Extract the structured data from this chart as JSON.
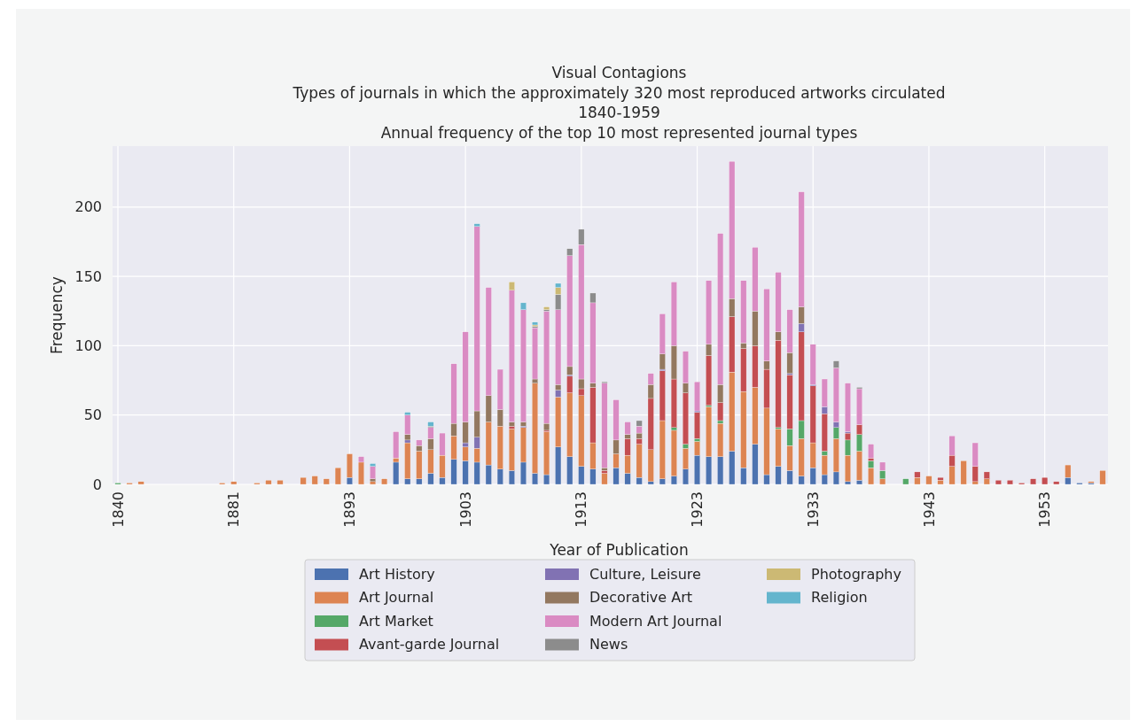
{
  "chart_data": {
    "type": "bar",
    "stacked": true,
    "title": "Visual Contagions",
    "subtitle": "Types of journals in which the approximately 320 most reproduced artworks circulated\n1840-1959\nAnnual frequency of the top 10 most represented journal types",
    "xlabel": "Year of Publication",
    "ylabel": "Frequency",
    "categories": [
      "1840",
      null,
      null,
      null,
      null,
      null,
      null,
      null,
      null,
      null,
      "1881",
      null,
      null,
      null,
      null,
      null,
      null,
      null,
      null,
      null,
      "1893",
      null,
      null,
      null,
      null,
      null,
      null,
      null,
      null,
      null,
      "1903",
      null,
      null,
      null,
      null,
      null,
      null,
      null,
      null,
      null,
      "1913",
      null,
      null,
      null,
      null,
      null,
      null,
      null,
      null,
      null,
      "1923",
      null,
      null,
      null,
      null,
      null,
      null,
      null,
      null,
      null,
      "1933",
      null,
      null,
      null,
      null,
      null,
      null,
      null,
      null,
      null,
      "1943",
      null,
      null,
      null,
      null,
      null,
      null,
      null,
      null,
      null,
      "1953",
      null,
      null,
      null,
      null,
      null
    ],
    "series": [
      {
        "name": "Art History",
        "color": "#4c72b0",
        "values": [
          0,
          0,
          0,
          0,
          0,
          0,
          0,
          0,
          0,
          0,
          0,
          0,
          0,
          0,
          0,
          0,
          0,
          0,
          0,
          0,
          5,
          0,
          0,
          0,
          16,
          4,
          4,
          8,
          5,
          18,
          17,
          16,
          14,
          11,
          10,
          16,
          8,
          7,
          27,
          20,
          13,
          11,
          0,
          12,
          8,
          5,
          2,
          4,
          6,
          11,
          21,
          20,
          20,
          24,
          12,
          29,
          7,
          13,
          10,
          6,
          12,
          7,
          9,
          2,
          3,
          0,
          0,
          0,
          0,
          0,
          0,
          0,
          0,
          0,
          0,
          0,
          0,
          0,
          0,
          0,
          0,
          0,
          5,
          1,
          1,
          0
        ]
      },
      {
        "name": "Art Journal",
        "color": "#dd8452",
        "values": [
          0,
          1,
          2,
          0,
          0,
          0,
          0,
          0,
          0,
          1,
          2,
          0,
          1,
          3,
          3,
          0,
          5,
          6,
          4,
          12,
          17,
          16,
          2,
          4,
          3,
          26,
          20,
          17,
          16,
          17,
          10,
          10,
          31,
          31,
          30,
          25,
          65,
          31,
          36,
          46,
          51,
          19,
          8,
          10,
          13,
          24,
          23,
          42,
          33,
          15,
          10,
          36,
          24,
          57,
          55,
          41,
          48,
          27,
          18,
          27,
          18,
          14,
          24,
          19,
          21,
          12,
          4,
          0,
          0,
          5,
          6,
          3,
          13,
          17,
          2,
          4,
          0,
          0,
          0,
          0,
          0,
          0,
          9,
          0,
          1,
          10
        ]
      },
      {
        "name": "Art Market",
        "color": "#55a868",
        "values": [
          1,
          0,
          0,
          0,
          0,
          0,
          0,
          0,
          0,
          0,
          0,
          0,
          0,
          0,
          0,
          0,
          0,
          0,
          0,
          0,
          0,
          0,
          0,
          0,
          0,
          0,
          0,
          0,
          0,
          0,
          0,
          0,
          0,
          0,
          0,
          0,
          0,
          0,
          0,
          0,
          0,
          0,
          0,
          0,
          0,
          0,
          0,
          0,
          2,
          3,
          2,
          1,
          2,
          0,
          0,
          0,
          0,
          1,
          12,
          13,
          0,
          3,
          8,
          11,
          12,
          5,
          6,
          0,
          4,
          0,
          0,
          0,
          0,
          0,
          0,
          0,
          0,
          0,
          0,
          0,
          0,
          0,
          0,
          0,
          0,
          0
        ]
      },
      {
        "name": "Avant-garde Journal",
        "color": "#c44e52",
        "values": [
          0,
          0,
          0,
          0,
          0,
          0,
          0,
          0,
          0,
          0,
          0,
          0,
          0,
          0,
          0,
          0,
          0,
          0,
          0,
          0,
          0,
          0,
          0,
          0,
          0,
          0,
          0,
          0,
          0,
          0,
          0,
          0,
          0,
          0,
          2,
          0,
          0,
          1,
          0,
          12,
          5,
          40,
          2,
          0,
          12,
          4,
          37,
          36,
          35,
          37,
          19,
          36,
          13,
          40,
          31,
          30,
          28,
          63,
          39,
          64,
          41,
          27,
          0,
          5,
          7,
          2,
          0,
          0,
          0,
          4,
          0,
          2,
          8,
          0,
          11,
          5,
          3,
          3,
          1,
          4,
          5,
          2,
          0,
          0,
          0,
          0
        ]
      },
      {
        "name": "Culture, Leisure",
        "color": "#8172b3",
        "values": [
          0,
          0,
          0,
          0,
          0,
          0,
          0,
          0,
          0,
          0,
          0,
          0,
          0,
          0,
          0,
          0,
          0,
          0,
          0,
          0,
          0,
          0,
          0,
          0,
          0,
          2,
          0,
          0,
          0,
          0,
          3,
          8,
          0,
          0,
          0,
          1,
          0,
          0,
          5,
          1,
          0,
          0,
          0,
          0,
          0,
          0,
          0,
          1,
          0,
          0,
          1,
          0,
          0,
          0,
          0,
          0,
          0,
          0,
          1,
          6,
          1,
          5,
          4,
          1,
          0,
          0,
          0,
          0,
          0,
          0,
          0,
          0,
          0,
          0,
          0,
          0,
          0,
          0,
          0,
          0,
          0,
          0,
          0,
          0,
          0,
          0
        ]
      },
      {
        "name": "Decorative Art",
        "color": "#937860",
        "values": [
          0,
          0,
          0,
          0,
          0,
          0,
          0,
          0,
          0,
          0,
          0,
          0,
          0,
          0,
          0,
          0,
          0,
          0,
          0,
          0,
          0,
          0,
          2,
          0,
          0,
          4,
          4,
          8,
          0,
          9,
          15,
          19,
          19,
          12,
          3,
          3,
          3,
          5,
          4,
          6,
          7,
          3,
          2,
          10,
          3,
          4,
          10,
          11,
          24,
          7,
          0,
          8,
          13,
          13,
          4,
          25,
          6,
          6,
          15,
          12,
          0,
          0,
          0,
          0,
          0,
          0,
          0,
          0,
          0,
          0,
          0,
          0,
          0,
          0,
          0,
          0,
          0,
          0,
          0,
          0,
          0,
          0,
          0,
          0,
          0,
          0
        ]
      },
      {
        "name": "Modern Art Journal",
        "color": "#da8bc3",
        "values": [
          0,
          0,
          0,
          0,
          0,
          0,
          0,
          0,
          0,
          0,
          0,
          0,
          0,
          0,
          0,
          0,
          0,
          0,
          0,
          0,
          0,
          4,
          9,
          0,
          19,
          14,
          4,
          8,
          16,
          43,
          65,
          133,
          78,
          29,
          95,
          81,
          37,
          81,
          54,
          80,
          97,
          58,
          61,
          29,
          9,
          5,
          8,
          29,
          46,
          23,
          21,
          46,
          109,
          99,
          45,
          46,
          52,
          43,
          31,
          83,
          29,
          20,
          39,
          35,
          26,
          10,
          6,
          0,
          0,
          0,
          0,
          0,
          14,
          0,
          17,
          0,
          0,
          0,
          0,
          0,
          0,
          0,
          0,
          0,
          0,
          0
        ]
      },
      {
        "name": "News",
        "color": "#8c8c8c",
        "values": [
          0,
          0,
          0,
          0,
          0,
          0,
          0,
          0,
          0,
          0,
          0,
          0,
          0,
          0,
          0,
          0,
          0,
          0,
          0,
          0,
          0,
          0,
          0,
          0,
          0,
          0,
          0,
          1,
          0,
          0,
          0,
          0,
          0,
          0,
          0,
          0,
          1,
          1,
          11,
          5,
          11,
          7,
          1,
          0,
          0,
          4,
          0,
          0,
          0,
          0,
          0,
          0,
          0,
          0,
          0,
          0,
          0,
          0,
          0,
          0,
          0,
          0,
          5,
          0,
          1,
          0,
          0,
          0,
          0,
          0,
          0,
          0,
          0,
          0,
          0,
          0,
          0,
          0,
          0,
          0,
          0,
          0,
          0,
          0,
          0,
          0
        ]
      },
      {
        "name": "Photography",
        "color": "#ccb974",
        "values": [
          0,
          0,
          0,
          0,
          0,
          0,
          0,
          0,
          0,
          0,
          0,
          0,
          0,
          0,
          0,
          0,
          0,
          0,
          0,
          0,
          0,
          0,
          0,
          0,
          0,
          0,
          0,
          0,
          0,
          0,
          0,
          0,
          0,
          0,
          6,
          0,
          1,
          2,
          5,
          0,
          0,
          0,
          0,
          0,
          0,
          0,
          0,
          0,
          0,
          0,
          0,
          0,
          0,
          0,
          0,
          0,
          0,
          0,
          0,
          0,
          0,
          0,
          0,
          0,
          0,
          0,
          0,
          0,
          0,
          0,
          0,
          0,
          0,
          0,
          0,
          0,
          0,
          0,
          0,
          0,
          0,
          0,
          0,
          0,
          0,
          0
        ]
      },
      {
        "name": "Religion",
        "color": "#64b5cd",
        "values": [
          0,
          0,
          0,
          0,
          0,
          0,
          0,
          0,
          0,
          0,
          0,
          0,
          0,
          0,
          0,
          0,
          0,
          0,
          0,
          0,
          0,
          0,
          2,
          0,
          0,
          2,
          0,
          3,
          0,
          0,
          0,
          2,
          0,
          0,
          0,
          5,
          2,
          0,
          3,
          0,
          0,
          0,
          0,
          0,
          0,
          0,
          0,
          0,
          0,
          0,
          0,
          0,
          0,
          0,
          0,
          0,
          0,
          0,
          0,
          0,
          0,
          0,
          0,
          0,
          0,
          0,
          0,
          0,
          0,
          0,
          0,
          0,
          0,
          0,
          0,
          0,
          0,
          0,
          0,
          0,
          0,
          0,
          0,
          0,
          0,
          0
        ]
      }
    ],
    "ylim": [
      0,
      244
    ],
    "yticks": [
      0,
      50,
      100,
      150,
      200
    ],
    "grid": true,
    "legend": "bottom"
  }
}
